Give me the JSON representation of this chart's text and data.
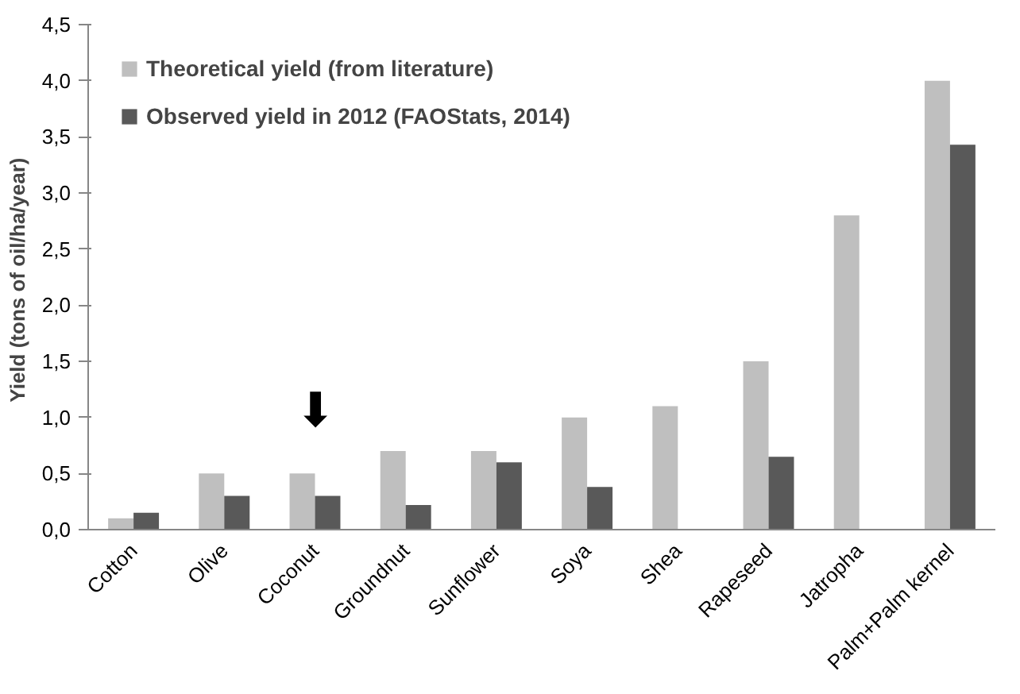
{
  "chart_data": {
    "type": "bar",
    "ylabel": "Yield  (tons of oil/ha/year)",
    "categories": [
      "Cotton",
      "Olive",
      "Coconut",
      "Groundnut",
      "Sunflower",
      "Soya",
      "Shea",
      "Rapeseed",
      "Jatropha",
      "Palm+Palm kernel"
    ],
    "series": [
      {
        "name": "Theoretical yield (from literature)",
        "color": "#bfbfbf",
        "values": [
          0.1,
          0.5,
          0.5,
          0.7,
          0.7,
          1.0,
          1.1,
          1.5,
          2.8,
          4.0
        ]
      },
      {
        "name": "Observed yield in 2012 (FAOStats, 2014)",
        "color": "#595959",
        "values": [
          0.15,
          0.3,
          0.3,
          0.22,
          0.6,
          0.38,
          null,
          0.65,
          null,
          3.43
        ]
      }
    ],
    "ylim": [
      0,
      4.5
    ],
    "yticks": [
      {
        "value": 0,
        "label": "0,0"
      },
      {
        "value": 0.5,
        "label": "0,5"
      },
      {
        "value": 1,
        "label": "1,0"
      },
      {
        "value": 1.5,
        "label": "1,5"
      },
      {
        "value": 2,
        "label": "2,0"
      },
      {
        "value": 2.5,
        "label": "2,5"
      },
      {
        "value": 3,
        "label": "3,0"
      },
      {
        "value": 3.5,
        "label": "3,5"
      },
      {
        "value": 4,
        "label": "4,0"
      },
      {
        "value": 4.5,
        "label": "4,5"
      }
    ],
    "annotations": [
      "⬇"
    ],
    "grid": false,
    "legend": "top left"
  }
}
